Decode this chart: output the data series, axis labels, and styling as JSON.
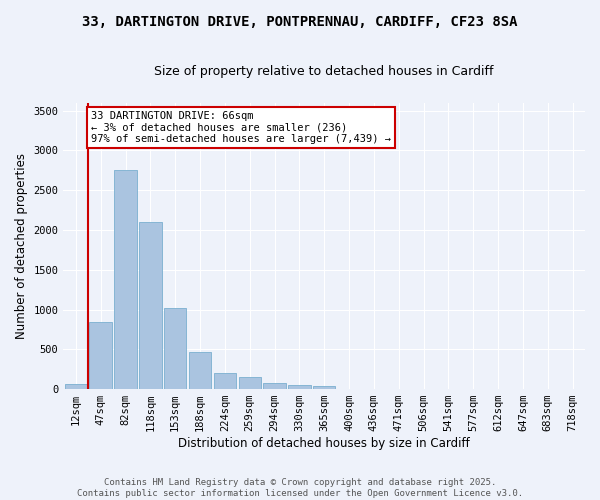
{
  "title_line1": "33, DARTINGTON DRIVE, PONTPRENNAU, CARDIFF, CF23 8SA",
  "title_line2": "Size of property relative to detached houses in Cardiff",
  "xlabel": "Distribution of detached houses by size in Cardiff",
  "ylabel": "Number of detached properties",
  "categories": [
    "12sqm",
    "47sqm",
    "82sqm",
    "118sqm",
    "153sqm",
    "188sqm",
    "224sqm",
    "259sqm",
    "294sqm",
    "330sqm",
    "365sqm",
    "400sqm",
    "436sqm",
    "471sqm",
    "506sqm",
    "541sqm",
    "577sqm",
    "612sqm",
    "647sqm",
    "683sqm",
    "718sqm"
  ],
  "values": [
    65,
    840,
    2750,
    2100,
    1020,
    460,
    200,
    150,
    80,
    55,
    40,
    0,
    0,
    0,
    0,
    0,
    0,
    0,
    0,
    0,
    0
  ],
  "bar_color": "#aac4e0",
  "bar_edge_color": "#7aafd0",
  "vline_x": 0.5,
  "vline_color": "#cc0000",
  "annotation_text": "33 DARTINGTON DRIVE: 66sqm\n← 3% of detached houses are smaller (236)\n97% of semi-detached houses are larger (7,439) →",
  "annotation_box_color": "#cc0000",
  "annotation_text_color": "#000000",
  "ylim": [
    0,
    3600
  ],
  "yticks": [
    0,
    500,
    1000,
    1500,
    2000,
    2500,
    3000,
    3500
  ],
  "background_color": "#eef2fa",
  "footer_text": "Contains HM Land Registry data © Crown copyright and database right 2025.\nContains public sector information licensed under the Open Government Licence v3.0.",
  "title_fontsize": 10,
  "subtitle_fontsize": 9,
  "axis_label_fontsize": 8.5,
  "tick_fontsize": 7.5,
  "annotation_fontsize": 7.5,
  "footer_fontsize": 6.5
}
